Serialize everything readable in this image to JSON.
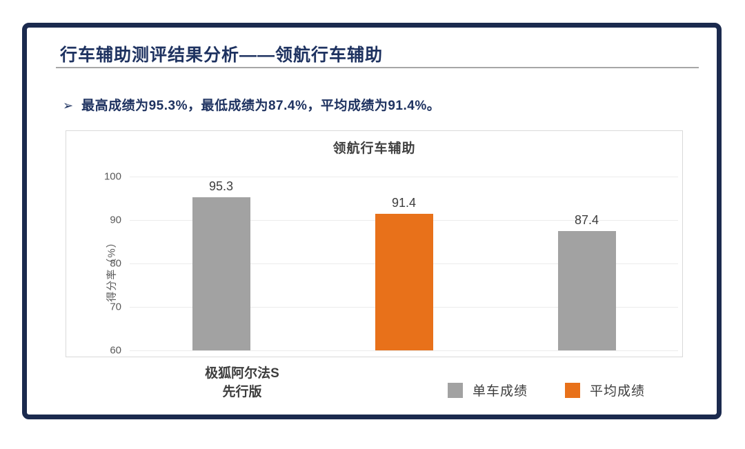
{
  "header": {
    "title": "行车辅助测评结果分析——领航行车辅助"
  },
  "bullet": {
    "marker": "➢",
    "text": "最高成绩为95.3%，最低成绩为87.4%，平均成绩为91.4%。"
  },
  "chart_data": {
    "type": "bar",
    "title": "领航行车辅助",
    "xlabel": "",
    "ylabel": "得分率（%）",
    "ylim": [
      60,
      100
    ],
    "yticks": [
      100,
      90,
      80,
      70,
      60
    ],
    "grid": true,
    "categories": [
      "极狐阿尔法S 先行版"
    ],
    "category_lines": [
      "极狐阿尔法S",
      "先行版"
    ],
    "bars": [
      {
        "series": "单车成绩",
        "value": 95.3,
        "label": "95.3",
        "color": "#a2a2a2"
      },
      {
        "series": "平均成绩",
        "value": 91.4,
        "label": "91.4",
        "color": "#e8711a"
      },
      {
        "series": "单车成绩",
        "value": 87.4,
        "label": "87.4",
        "color": "#a2a2a2"
      }
    ],
    "legend": [
      {
        "label": "单车成绩",
        "color": "#a2a2a2"
      },
      {
        "label": "平均成绩",
        "color": "#e8711a"
      }
    ],
    "legend_position": "bottom-right",
    "stats": {
      "max": "95.3%",
      "min": "87.4%",
      "avg": "91.4%"
    }
  },
  "colors": {
    "frame_navy": "#1b2a4e",
    "title_navy": "#1e3260",
    "bar_gray": "#a2a2a2",
    "bar_orange": "#e8711a",
    "axis_text": "#595959",
    "gridline": "#ebebeb"
  }
}
